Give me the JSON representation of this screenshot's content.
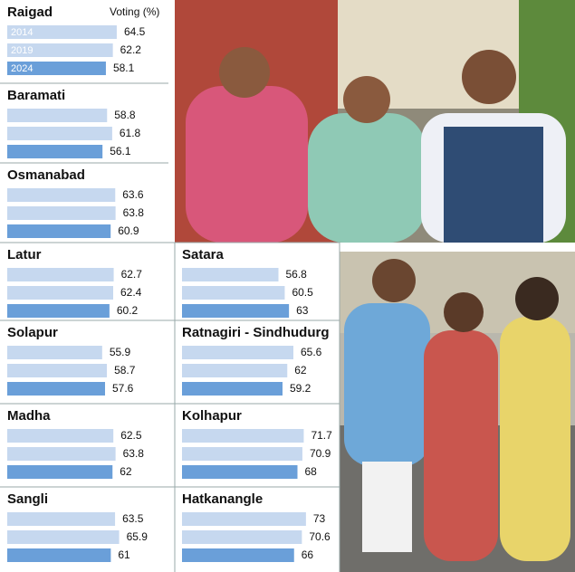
{
  "chart_data": [
    {
      "type": "bar",
      "title": "Raigad",
      "value_axis_label": "Voting (%)",
      "categories": [
        "2014",
        "2019",
        "2024"
      ],
      "values": [
        64.5,
        62.2,
        58.1
      ],
      "xlim": [
        0,
        80
      ],
      "colors": [
        "#c6d8ef",
        "#c6d8ef",
        "#6a9fd9"
      ]
    },
    {
      "type": "bar",
      "title": "Baramati",
      "values": [
        58.8,
        61.8,
        56.1
      ],
      "xlim": [
        0,
        80
      ],
      "colors": [
        "#c6d8ef",
        "#c6d8ef",
        "#6a9fd9"
      ]
    },
    {
      "type": "bar",
      "title": "Osmanabad",
      "values": [
        63.6,
        63.8,
        60.9
      ],
      "xlim": [
        0,
        80
      ],
      "colors": [
        "#c6d8ef",
        "#c6d8ef",
        "#6a9fd9"
      ]
    },
    {
      "type": "bar",
      "title": "Latur",
      "values": [
        62.7,
        62.4,
        60.2
      ],
      "xlim": [
        0,
        80
      ],
      "colors": [
        "#c6d8ef",
        "#c6d8ef",
        "#6a9fd9"
      ]
    },
    {
      "type": "bar",
      "title": "Satara",
      "values": [
        56.8,
        60.5,
        63
      ],
      "xlim": [
        0,
        80
      ],
      "colors": [
        "#c6d8ef",
        "#c6d8ef",
        "#6a9fd9"
      ]
    },
    {
      "type": "bar",
      "title": "Solapur",
      "values": [
        55.9,
        58.7,
        57.6
      ],
      "xlim": [
        0,
        80
      ],
      "colors": [
        "#c6d8ef",
        "#c6d8ef",
        "#6a9fd9"
      ]
    },
    {
      "type": "bar",
      "title": "Ratnagiri - Sindhudurg",
      "values": [
        65.6,
        62,
        59.2
      ],
      "xlim": [
        0,
        80
      ],
      "colors": [
        "#c6d8ef",
        "#c6d8ef",
        "#6a9fd9"
      ]
    },
    {
      "type": "bar",
      "title": "Madha",
      "values": [
        62.5,
        63.8,
        62
      ],
      "xlim": [
        0,
        80
      ],
      "colors": [
        "#c6d8ef",
        "#c6d8ef",
        "#6a9fd9"
      ]
    },
    {
      "type": "bar",
      "title": "Kolhapur",
      "values": [
        71.7,
        70.9,
        68
      ],
      "xlim": [
        0,
        80
      ],
      "colors": [
        "#c6d8ef",
        "#c6d8ef",
        "#6a9fd9"
      ]
    },
    {
      "type": "bar",
      "title": "Sangli",
      "values": [
        63.5,
        65.9,
        61
      ],
      "xlim": [
        0,
        80
      ],
      "colors": [
        "#c6d8ef",
        "#c6d8ef",
        "#6a9fd9"
      ]
    },
    {
      "type": "bar",
      "title": "Hatkanangle",
      "values": [
        73,
        70.6,
        66
      ],
      "xlim": [
        0,
        80
      ],
      "colors": [
        "#c6d8ef",
        "#c6d8ef",
        "#6a9fd9"
      ]
    }
  ]
}
